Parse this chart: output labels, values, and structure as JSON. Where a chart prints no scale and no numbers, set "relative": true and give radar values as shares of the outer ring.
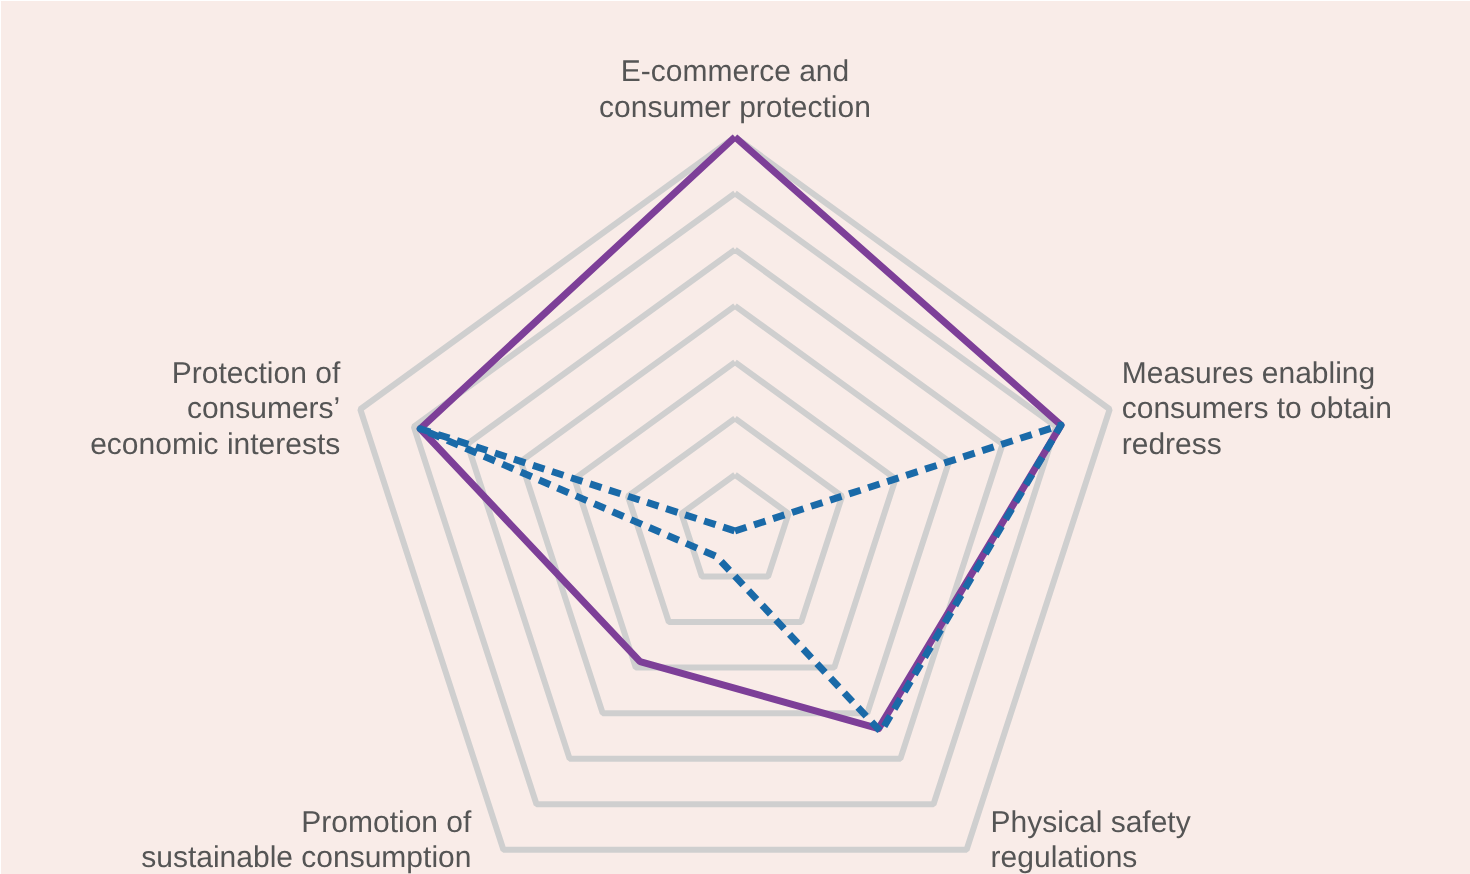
{
  "chart_data": {
    "type": "radar",
    "relative": true,
    "grid": true,
    "categories": [
      "E-commerce and\nconsumer protection",
      "Measures enabling\nconsumers to obtain\nredress",
      "Physical safety\nregulations",
      "Promotion of\nsustainable consumption",
      "Protection of\nconsumers’\neconomic interests"
    ],
    "series": [
      {
        "color": "#7d3f98",
        "line_style": "solid",
        "values": [
          1,
          0.87,
          0.62,
          0.41,
          0.84
        ]
      },
      {
        "color": "#1a6aa8",
        "line_style": "dashed",
        "values": [
          0,
          0.87,
          0.63,
          0.08,
          0.84
        ]
      }
    ]
  }
}
